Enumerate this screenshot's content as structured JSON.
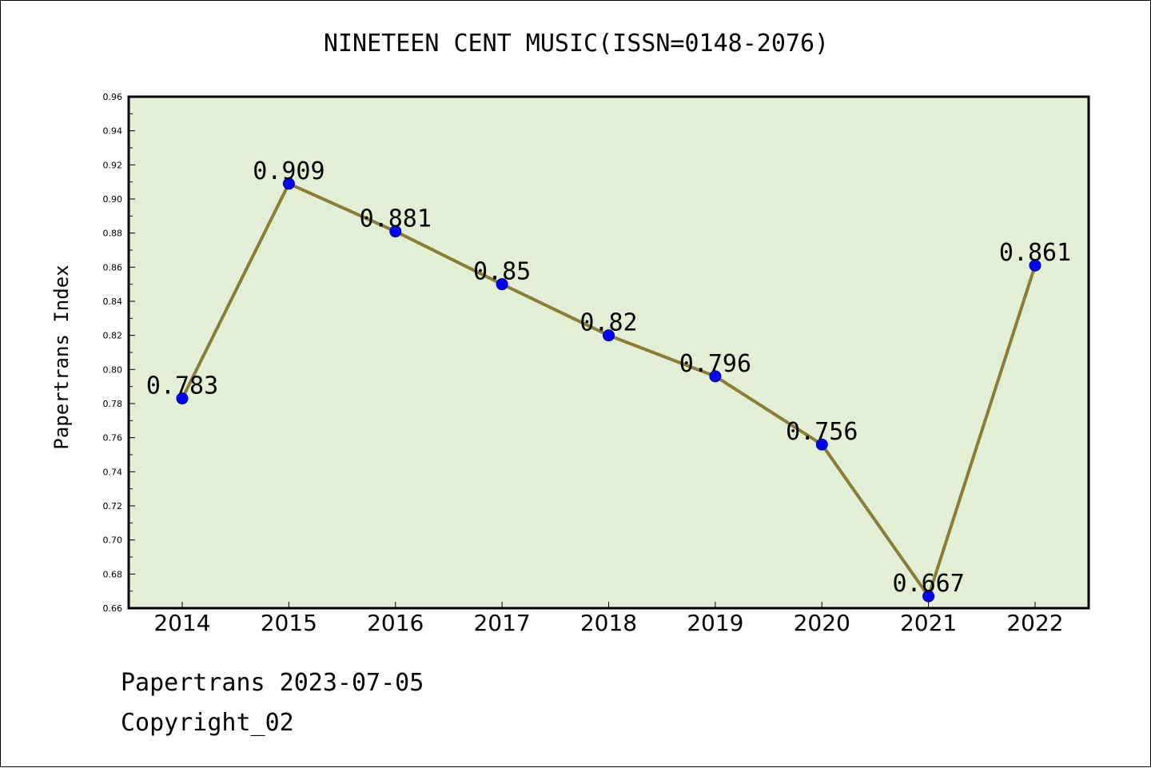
{
  "header": {
    "title": "NINETEEN CENT MUSIC(ISSN=0148-2076)"
  },
  "footer": {
    "line1": "Papertrans 2023-07-05",
    "line2": "Copyright_02"
  },
  "colors": {
    "plot_background": "#e2efd5",
    "line": "#8b7d35",
    "marker": "#0000ff",
    "axes": "#000000"
  },
  "chart_data": {
    "type": "line",
    "title": "NINETEEN CENT MUSIC(ISSN=0148-2076)",
    "xlabel": "",
    "ylabel": "Papertrans Index",
    "categories": [
      "2014",
      "2015",
      "2016",
      "2017",
      "2018",
      "2019",
      "2020",
      "2021",
      "2022"
    ],
    "values": [
      0.783,
      0.909,
      0.881,
      0.85,
      0.82,
      0.796,
      0.756,
      0.667,
      0.861
    ],
    "data_labels": [
      "0.783",
      "0.909",
      "0.881",
      "0.85",
      "0.82",
      "0.796",
      "0.756",
      "0.667",
      "0.861"
    ],
    "ylim": [
      0.66,
      0.96
    ],
    "yticks": [
      "0.66",
      "0.68",
      "0.70",
      "0.72",
      "0.74",
      "0.76",
      "0.78",
      "0.80",
      "0.82",
      "0.84",
      "0.86",
      "0.88",
      "0.90",
      "0.92",
      "0.94",
      "0.96"
    ],
    "grid": false,
    "legend": "none"
  }
}
